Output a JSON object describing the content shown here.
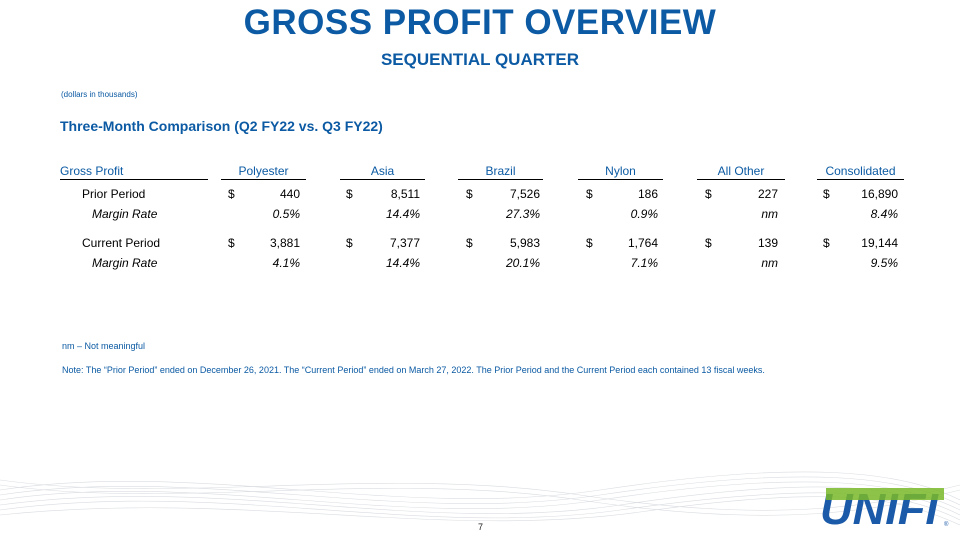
{
  "title": "GROSS PROFIT OVERVIEW",
  "subtitle": "SEQUENTIAL QUARTER",
  "units_note": "(dollars in thousands)",
  "section_title": "Three-Month Comparison (Q2 FY22 vs. Q3 FY22)",
  "table": {
    "first_header": "Gross Profit",
    "columns": [
      "Polyester",
      "Asia",
      "Brazil",
      "Nylon",
      "All Other",
      "Consolidated"
    ],
    "rows": [
      {
        "label": "Prior Period",
        "italic": false,
        "dollar": "$",
        "values": [
          "440",
          "8,511",
          "7,526",
          "186",
          "227",
          "16,890"
        ]
      },
      {
        "label": "Margin Rate",
        "italic": true,
        "dollar": "",
        "values": [
          "0.5%",
          "14.4%",
          "27.3%",
          "0.9%",
          "nm",
          "8.4%"
        ]
      },
      {
        "label": "Current Period",
        "italic": false,
        "dollar": "$",
        "values": [
          "3,881",
          "7,377",
          "5,983",
          "1,764",
          "139",
          "19,144"
        ]
      },
      {
        "label": "Margin Rate",
        "italic": true,
        "dollar": "",
        "values": [
          "4.1%",
          "14.4%",
          "20.1%",
          "7.1%",
          "nm",
          "9.5%"
        ]
      }
    ]
  },
  "footnote_nm": "nm – Not meaningful",
  "footnote_note": "Note: The “Prior Period” ended on December 26, 2021. The “Current Period” ended on March 27, 2022.  The Prior Period and the Current Period each contained 13 fiscal weeks.",
  "page_number": "7",
  "logo": {
    "text": "UNIFI",
    "registered": "®"
  },
  "colors": {
    "brand_blue": "#0b5aa3",
    "logo_green": "#7ab829",
    "logo_blue": "#1b5aa8"
  }
}
